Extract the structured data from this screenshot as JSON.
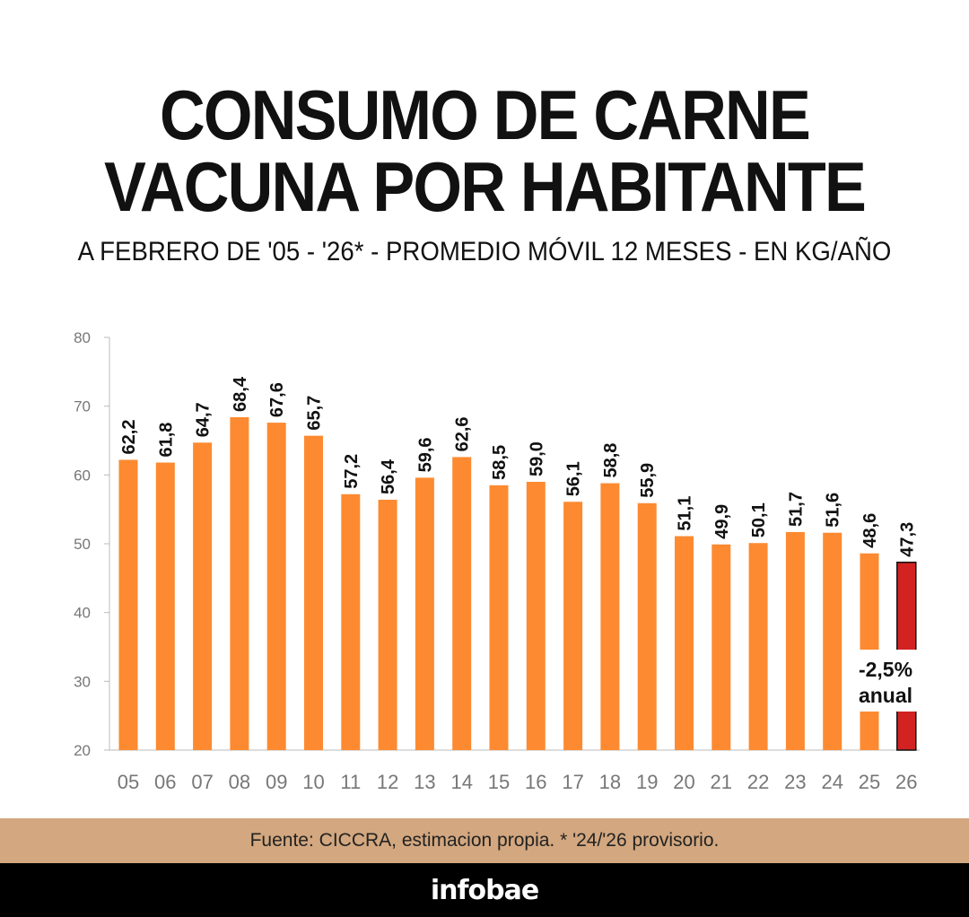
{
  "header": {
    "title_line1": "CONSUMO DE CARNE",
    "title_line2": "VACUNA POR HABITANTE",
    "subtitle": "A FEBRERO DE '05 - '26* - PROMEDIO MÓVIL 12 MESES - EN KG/AÑO"
  },
  "chart_data": {
    "type": "bar",
    "categories": [
      "05",
      "06",
      "07",
      "08",
      "09",
      "10",
      "11",
      "12",
      "13",
      "14",
      "15",
      "16",
      "17",
      "18",
      "19",
      "20",
      "21",
      "22",
      "23",
      "24",
      "25",
      "26"
    ],
    "values": [
      62.2,
      61.8,
      64.7,
      68.4,
      67.6,
      65.7,
      57.2,
      56.4,
      59.6,
      62.6,
      58.5,
      59.0,
      56.1,
      58.8,
      55.9,
      51.1,
      49.9,
      50.1,
      51.7,
      51.6,
      48.6,
      47.3
    ],
    "value_labels": [
      "62,2",
      "61,8",
      "64,7",
      "68,4",
      "67,6",
      "65,7",
      "57,2",
      "56,4",
      "59,6",
      "62,6",
      "58,5",
      "59,0",
      "56,1",
      "58,8",
      "55,9",
      "51,1",
      "49,9",
      "50,1",
      "51,7",
      "51,6",
      "48,6",
      "47,3"
    ],
    "ylim": [
      20,
      80
    ],
    "yticks": [
      20,
      30,
      40,
      50,
      60,
      70,
      80
    ],
    "grid": false,
    "colors": {
      "bar": "#fd8a30",
      "highlight_bar": "#d22222",
      "highlight_outline": "#111111",
      "axis": "#bbbbbb",
      "tick_text": "#777777",
      "label_text": "#111111"
    },
    "highlight_index": 21,
    "annotation": {
      "line1": "-2,5%",
      "line2": "anual"
    }
  },
  "source": "Fuente: CICCRA, estimacion propia. * '24/'26 provisorio.",
  "brand": "infobae"
}
